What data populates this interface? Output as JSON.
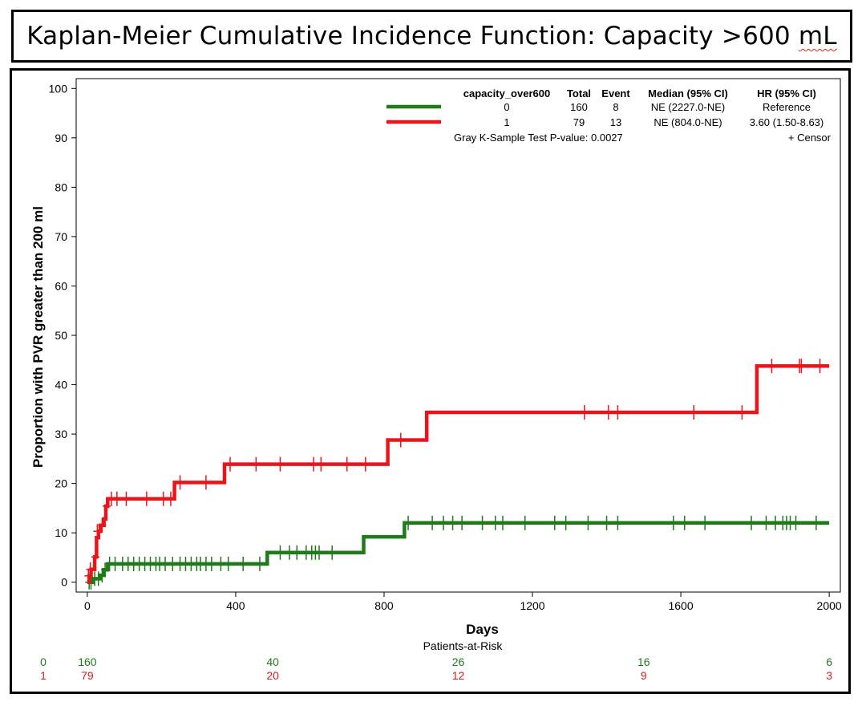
{
  "header": {
    "title_main": "Kaplan-Meier Cumulative Incidence Function: Capacity >600",
    "title_unit": "mL"
  },
  "chart_data": {
    "type": "line",
    "step": true,
    "xlabel": "Days",
    "ylabel": "Proportion with PVR greater than 200 ml",
    "xlim": [
      -30,
      2030
    ],
    "ylim": [
      -2,
      102
    ],
    "xticks": [
      0,
      400,
      800,
      1200,
      1600,
      2000
    ],
    "yticks": [
      0,
      10,
      20,
      30,
      40,
      50,
      60,
      70,
      80,
      90,
      100
    ],
    "grid": false,
    "legend": {
      "placement": "top-right",
      "headers": [
        "capacity_over600",
        "Total",
        "Event",
        "Median (95% CI)",
        "HR (95% CI)"
      ],
      "rows": [
        {
          "group": "0",
          "total": "160",
          "event": "8",
          "median": "NE (2227.0-NE)",
          "hr": "Reference"
        },
        {
          "group": "1",
          "total": "79",
          "event": "13",
          "median": "NE (804.0-NE)",
          "hr": "3.60 (1.50-8.63)"
        }
      ],
      "test_text": "Gray K-Sample Test P-value: 0.0027",
      "censor_text": "+ Censor"
    },
    "series": [
      {
        "group": "0",
        "color": "#1f7a1a",
        "steps": [
          [
            0,
            0
          ],
          [
            15,
            0.7
          ],
          [
            35,
            1.4
          ],
          [
            45,
            2.5
          ],
          [
            55,
            3.7
          ],
          [
            480,
            3.7
          ],
          [
            485,
            6.0
          ],
          [
            740,
            6.0
          ],
          [
            745,
            9.2
          ],
          [
            850,
            9.2
          ],
          [
            855,
            12.0
          ],
          [
            2000,
            12.0
          ]
        ],
        "censors": [
          [
            5,
            0
          ],
          [
            10,
            0
          ],
          [
            20,
            0.7
          ],
          [
            30,
            0.7
          ],
          [
            40,
            1.4
          ],
          [
            48,
            2.5
          ],
          [
            60,
            3.7
          ],
          [
            75,
            3.7
          ],
          [
            95,
            3.7
          ],
          [
            110,
            3.7
          ],
          [
            125,
            3.7
          ],
          [
            140,
            3.7
          ],
          [
            155,
            3.7
          ],
          [
            170,
            3.7
          ],
          [
            185,
            3.7
          ],
          [
            195,
            3.7
          ],
          [
            210,
            3.7
          ],
          [
            230,
            3.7
          ],
          [
            250,
            3.7
          ],
          [
            265,
            3.7
          ],
          [
            280,
            3.7
          ],
          [
            295,
            3.7
          ],
          [
            305,
            3.7
          ],
          [
            320,
            3.7
          ],
          [
            335,
            3.7
          ],
          [
            360,
            3.7
          ],
          [
            380,
            3.7
          ],
          [
            420,
            3.7
          ],
          [
            465,
            3.7
          ],
          [
            520,
            6.0
          ],
          [
            545,
            6.0
          ],
          [
            565,
            6.0
          ],
          [
            590,
            6.0
          ],
          [
            605,
            6.0
          ],
          [
            615,
            6.0
          ],
          [
            625,
            6.0
          ],
          [
            660,
            6.0
          ],
          [
            865,
            12.0
          ],
          [
            930,
            12.0
          ],
          [
            960,
            12.0
          ],
          [
            985,
            12.0
          ],
          [
            1010,
            12.0
          ],
          [
            1065,
            12.0
          ],
          [
            1100,
            12.0
          ],
          [
            1120,
            12.0
          ],
          [
            1180,
            12.0
          ],
          [
            1260,
            12.0
          ],
          [
            1290,
            12.0
          ],
          [
            1350,
            12.0
          ],
          [
            1400,
            12.0
          ],
          [
            1430,
            12.0
          ],
          [
            1580,
            12.0
          ],
          [
            1610,
            12.0
          ],
          [
            1665,
            12.0
          ],
          [
            1790,
            12.0
          ],
          [
            1830,
            12.0
          ],
          [
            1855,
            12.0
          ],
          [
            1875,
            12.0
          ],
          [
            1885,
            12.0
          ],
          [
            1895,
            12.0
          ],
          [
            1910,
            12.0
          ],
          [
            1965,
            12.0
          ]
        ]
      },
      {
        "group": "1",
        "color": "#e8151b",
        "steps": [
          [
            0,
            0
          ],
          [
            5,
            1.3
          ],
          [
            10,
            2.6
          ],
          [
            20,
            5.1
          ],
          [
            25,
            9.0
          ],
          [
            30,
            10.3
          ],
          [
            35,
            11.5
          ],
          [
            45,
            12.8
          ],
          [
            50,
            15.4
          ],
          [
            55,
            16.9
          ],
          [
            230,
            16.9
          ],
          [
            235,
            20.2
          ],
          [
            365,
            20.2
          ],
          [
            370,
            23.9
          ],
          [
            805,
            23.9
          ],
          [
            810,
            28.8
          ],
          [
            910,
            28.8
          ],
          [
            915,
            34.4
          ],
          [
            1800,
            34.4
          ],
          [
            1805,
            43.8
          ],
          [
            2000,
            43.8
          ]
        ],
        "censors": [
          [
            3,
            1.3
          ],
          [
            8,
            2.6
          ],
          [
            22,
            5.1
          ],
          [
            27,
            10.3
          ],
          [
            40,
            11.5
          ],
          [
            52,
            15.4
          ],
          [
            65,
            16.9
          ],
          [
            80,
            16.9
          ],
          [
            105,
            16.9
          ],
          [
            160,
            16.9
          ],
          [
            205,
            16.9
          ],
          [
            225,
            16.9
          ],
          [
            250,
            20.2
          ],
          [
            320,
            20.2
          ],
          [
            385,
            23.9
          ],
          [
            455,
            23.9
          ],
          [
            520,
            23.9
          ],
          [
            610,
            23.9
          ],
          [
            630,
            23.9
          ],
          [
            700,
            23.9
          ],
          [
            750,
            23.9
          ],
          [
            845,
            28.8
          ],
          [
            1340,
            34.4
          ],
          [
            1405,
            34.4
          ],
          [
            1430,
            34.4
          ],
          [
            1635,
            34.4
          ],
          [
            1765,
            34.4
          ],
          [
            1845,
            43.8
          ],
          [
            1920,
            43.8
          ],
          [
            1925,
            43.8
          ],
          [
            1975,
            43.8
          ]
        ]
      }
    ]
  },
  "risk_table": {
    "title": "Patients-at-Risk",
    "times": [
      0,
      500,
      1000,
      1500,
      2000
    ],
    "rows": [
      {
        "group": "0",
        "color": "#1f7a1a",
        "counts": [
          "160",
          "40",
          "26",
          "16",
          "6"
        ]
      },
      {
        "group": "1",
        "color": "#d91b1f",
        "counts": [
          "79",
          "20",
          "12",
          "9",
          "3"
        ]
      }
    ]
  }
}
